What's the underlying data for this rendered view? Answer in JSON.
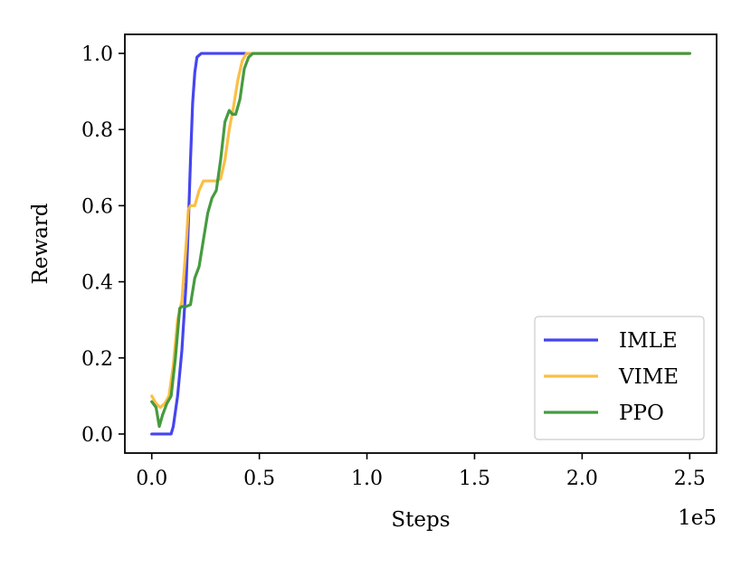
{
  "chart_data": {
    "type": "line",
    "xlabel": "Steps",
    "ylabel": "Reward",
    "x_offset_label": "1e5",
    "xlim": [
      -0.125,
      2.625
    ],
    "ylim": [
      -0.05,
      1.05
    ],
    "x_ticks": [
      0.0,
      0.5,
      1.0,
      1.5,
      2.0,
      2.5
    ],
    "x_tick_labels": [
      "0.0",
      "0.5",
      "1.0",
      "1.5",
      "2.0",
      "2.5"
    ],
    "y_ticks": [
      0.0,
      0.2,
      0.4,
      0.6,
      0.8,
      1.0
    ],
    "y_tick_labels": [
      "0.0",
      "0.2",
      "0.4",
      "0.6",
      "0.8",
      "1.0"
    ],
    "grid": false,
    "legend_position": "lower-right",
    "series": [
      {
        "name": "IMLE",
        "color": "#3b3bf0",
        "x": [
          0.0,
          0.05,
          0.09,
          0.1,
          0.12,
          0.14,
          0.16,
          0.17,
          0.18,
          0.19,
          0.2,
          0.21,
          0.23,
          0.25,
          0.3,
          0.4,
          0.5,
          1.0,
          1.5,
          2.0,
          2.5
        ],
        "y": [
          0.0,
          0.0,
          0.0,
          0.02,
          0.1,
          0.22,
          0.4,
          0.55,
          0.72,
          0.87,
          0.95,
          0.99,
          1.0,
          1.0,
          1.0,
          1.0,
          1.0,
          1.0,
          1.0,
          1.0,
          1.0
        ]
      },
      {
        "name": "VIME",
        "color": "#fbbc3c",
        "x": [
          0.0,
          0.02,
          0.04,
          0.06,
          0.08,
          0.1,
          0.12,
          0.14,
          0.16,
          0.17,
          0.18,
          0.2,
          0.22,
          0.24,
          0.26,
          0.3,
          0.32,
          0.34,
          0.36,
          0.38,
          0.4,
          0.42,
          0.44,
          0.46,
          0.5,
          1.0,
          1.5,
          2.0,
          2.5
        ],
        "y": [
          0.1,
          0.08,
          0.07,
          0.08,
          0.1,
          0.18,
          0.3,
          0.35,
          0.5,
          0.59,
          0.6,
          0.6,
          0.64,
          0.665,
          0.665,
          0.665,
          0.67,
          0.72,
          0.8,
          0.86,
          0.93,
          0.98,
          1.0,
          1.0,
          1.0,
          1.0,
          1.0,
          1.0,
          1.0
        ]
      },
      {
        "name": "PPO",
        "color": "#3c9636",
        "x": [
          0.0,
          0.02,
          0.035,
          0.05,
          0.07,
          0.09,
          0.11,
          0.13,
          0.14,
          0.16,
          0.18,
          0.2,
          0.22,
          0.24,
          0.26,
          0.28,
          0.3,
          0.32,
          0.34,
          0.36,
          0.375,
          0.39,
          0.41,
          0.43,
          0.45,
          0.47,
          0.5,
          1.0,
          1.5,
          2.0,
          2.5
        ],
        "y": [
          0.085,
          0.07,
          0.02,
          0.05,
          0.08,
          0.1,
          0.2,
          0.33,
          0.335,
          0.335,
          0.34,
          0.41,
          0.44,
          0.51,
          0.58,
          0.62,
          0.64,
          0.72,
          0.82,
          0.85,
          0.84,
          0.84,
          0.88,
          0.96,
          0.99,
          1.0,
          1.0,
          1.0,
          1.0,
          1.0,
          1.0
        ]
      }
    ]
  }
}
